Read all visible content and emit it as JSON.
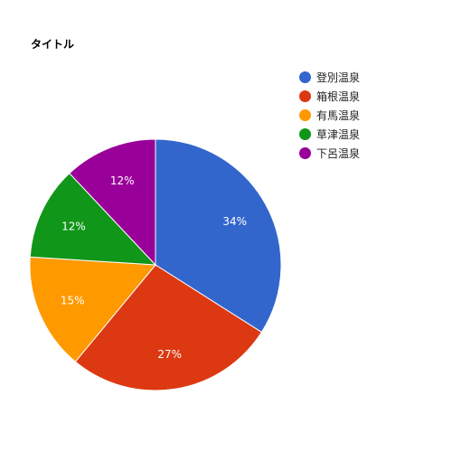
{
  "chart_data": {
    "type": "pie",
    "title": "タイトル",
    "categories": [
      "登別温泉",
      "箱根温泉",
      "有馬温泉",
      "草津温泉",
      "下呂温泉"
    ],
    "values": [
      34,
      27,
      15,
      12,
      12
    ],
    "value_labels": [
      "34%",
      "27%",
      "15%",
      "12%",
      "12%"
    ],
    "colors": [
      "#3366cc",
      "#dc3912",
      "#ff9900",
      "#109618",
      "#990099"
    ],
    "legend_position": "right"
  }
}
